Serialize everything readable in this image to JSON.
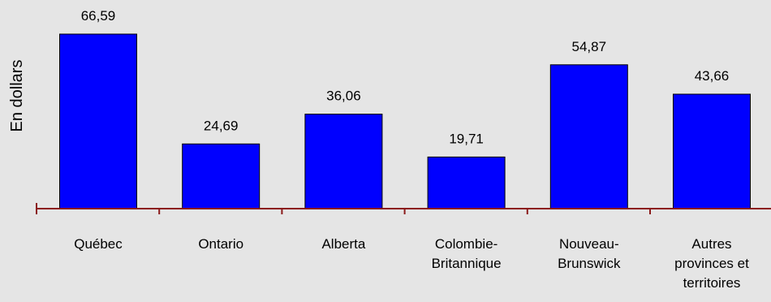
{
  "chart_data": {
    "type": "bar",
    "ylabel": "En dollars",
    "categories": [
      [
        "Québec"
      ],
      [
        "Ontario"
      ],
      [
        "Alberta"
      ],
      [
        "Colombie-",
        "Britannique"
      ],
      [
        "Nouveau-",
        "Brunswick"
      ],
      [
        "Autres",
        "provinces et",
        "territoires"
      ]
    ],
    "values": [
      66.59,
      24.69,
      36.06,
      19.71,
      54.87,
      43.66
    ],
    "value_labels": [
      "66,59",
      "24,69",
      "36,06",
      "19,71",
      "54,87",
      "43,66"
    ],
    "ylim": [
      0,
      70
    ],
    "grid": false,
    "colors": {
      "bar_fill": "#0000ff",
      "bar_stroke": "#000000",
      "axis": "#8b1a1a",
      "background": "#e5e5e5"
    }
  }
}
